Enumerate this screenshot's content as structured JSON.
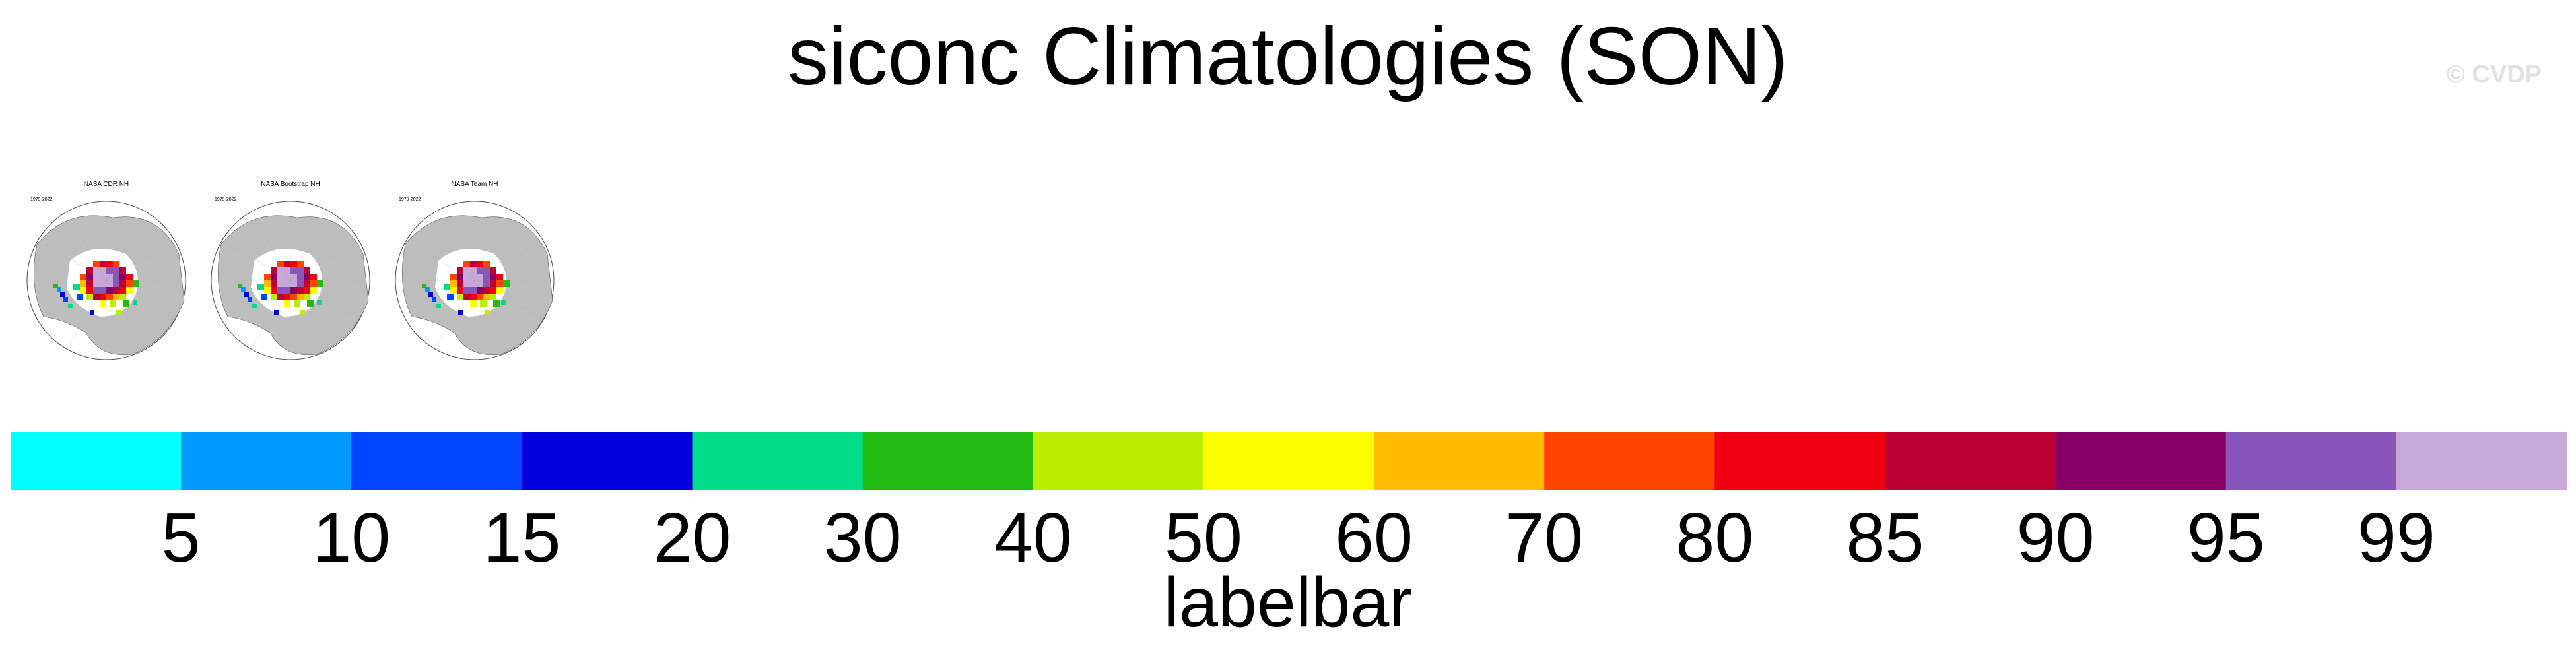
{
  "title": "siconc Climatologies (SON)",
  "watermark": "© CVDP",
  "panels": [
    {
      "title": "NASA CDR NH",
      "years": "1979-2022"
    },
    {
      "title": "NASA Bootstrap NH",
      "years": "1979-2022"
    },
    {
      "title": "NASA Team NH",
      "years": "1979-2022"
    }
  ],
  "chart_data": {
    "type": "heatmap",
    "title": "siconc Climatologies (SON)",
    "legend": {
      "title": "labelbar",
      "levels": [
        5,
        10,
        15,
        20,
        30,
        40,
        50,
        60,
        70,
        80,
        85,
        90,
        95,
        99
      ],
      "colors": [
        "#00ffff",
        "#0099ff",
        "#0044ff",
        "#0000dd",
        "#00dd88",
        "#22bb11",
        "#bbee00",
        "#ffff00",
        "#ffbb00",
        "#ff4400",
        "#ee0011",
        "#bb0033",
        "#880066",
        "#8855bb",
        "#c8a8d8"
      ]
    },
    "panels": [
      "NASA CDR NH",
      "NASA Bootstrap NH",
      "NASA Team NH"
    ]
  },
  "colors": {
    "land": "#bdbdbd",
    "ocean": "#ffffff"
  }
}
